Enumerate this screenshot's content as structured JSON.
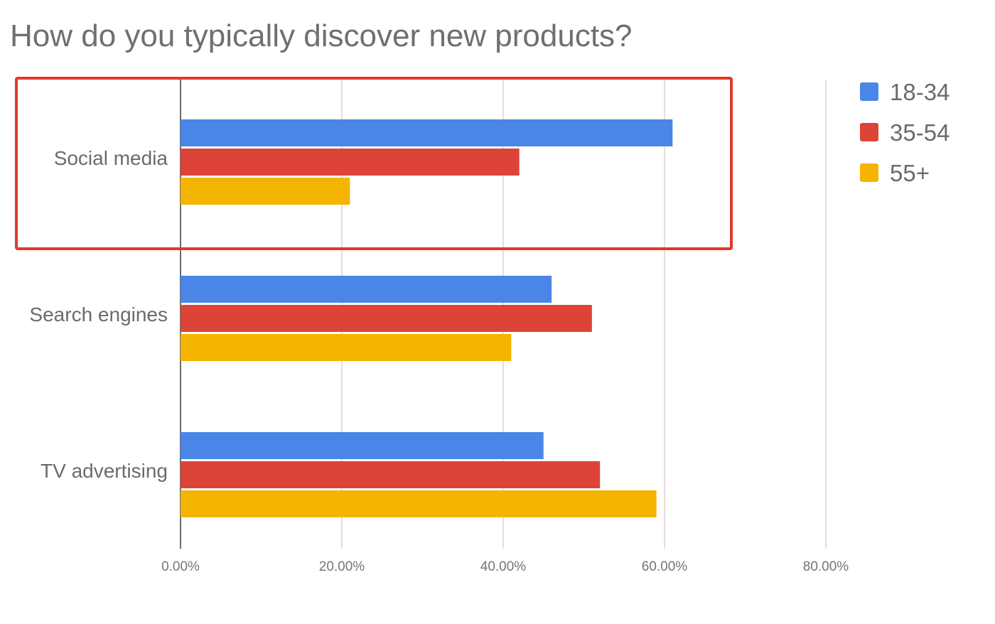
{
  "chart_data": {
    "type": "bar",
    "orientation": "horizontal",
    "title": "How do you typically discover new products?",
    "categories": [
      "Social media",
      "Search engines",
      "TV advertising"
    ],
    "series": [
      {
        "name": "18-34",
        "values": [
          61,
          46,
          45
        ]
      },
      {
        "name": "35-54",
        "values": [
          42,
          51,
          52
        ]
      },
      {
        "name": "55+",
        "values": [
          21,
          41,
          59
        ]
      }
    ],
    "xlim": [
      0,
      80
    ],
    "xticks": [
      "0.00%",
      "20.00%",
      "40.00%",
      "60.00%",
      "80.00%"
    ],
    "grid": true,
    "legend_position": "top-right",
    "highlight_category": "Social media",
    "highlight_color": "#e0392b",
    "colors": [
      "#4a86e8",
      "#db4437",
      "#f4b400"
    ]
  }
}
